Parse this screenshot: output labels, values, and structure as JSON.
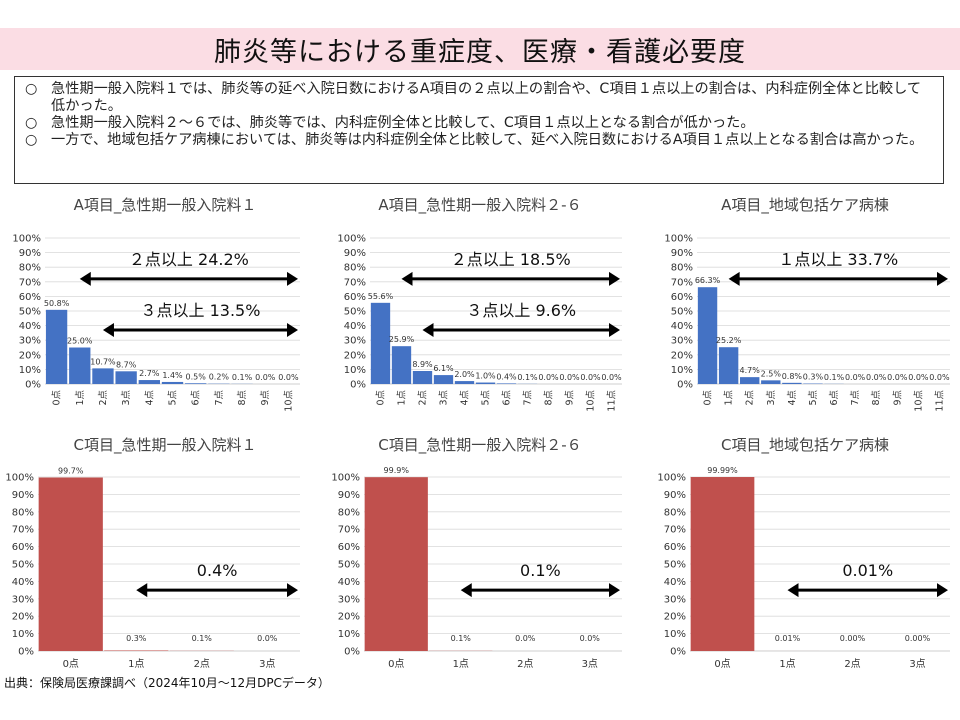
{
  "page": {
    "title": "肺炎等における重症度、医療・看護必要度",
    "summary": [
      {
        "mark": "○",
        "text": "急性期一般入院料１では、肺炎等の延べ入院日数におけるA項目の２点以上の割合や、C項目１点以上の割合は、内科症例全体と比較して低かった。"
      },
      {
        "mark": "○",
        "text": "急性期一般入院料２～６では、肺炎等では、内科症例全体と比較して、C項目１点以上となる割合が低かった。"
      },
      {
        "mark": "○",
        "text": "一方で、地域包括ケア病棟においては、肺炎等は内科症例全体と比較して、延べ入院日数におけるA項目１点以上となる割合は高かった。"
      }
    ],
    "source": "出典：保険局医療課調べ（2024年10月～12月DPCデータ）"
  },
  "colors": {
    "a_bar": "#4472c4",
    "c_bar": "#c0504d",
    "grid": "#d9d9d9",
    "arrow": "#000000"
  },
  "chart_data": [
    {
      "type": "bar",
      "title": "A項目_急性期一般入院料１",
      "categories": [
        "0点",
        "1点",
        "2点",
        "3点",
        "4点",
        "5点",
        "6点",
        "7点",
        "8点",
        "9点",
        "10点"
      ],
      "values": [
        50.8,
        25.0,
        10.7,
        8.7,
        2.7,
        1.4,
        0.5,
        0.2,
        0.1,
        0.0,
        0.0
      ],
      "labels": [
        "50.8%",
        "25.0%",
        "10.7%",
        "8.7%",
        "2.7%",
        "1.4%",
        "0.5%",
        "0.2%",
        "0.1%",
        "0.0%",
        "0.0%"
      ],
      "ylim": [
        0,
        100
      ],
      "yticks": [
        "0%",
        "10%",
        "20%",
        "30%",
        "40%",
        "50%",
        "60%",
        "70%",
        "80%",
        "90%",
        "100%"
      ],
      "grid": true,
      "annotations": [
        {
          "text": "２点以上 24.2%",
          "from_category": 1,
          "to_category": 10,
          "level": 72
        },
        {
          "text": "３点以上 13.5%",
          "from_category": 2,
          "to_category": 10,
          "level": 37
        }
      ]
    },
    {
      "type": "bar",
      "title": "A項目_急性期一般入院料２-６",
      "categories": [
        "0点",
        "1点",
        "2点",
        "3点",
        "4点",
        "5点",
        "6点",
        "7点",
        "8点",
        "9点",
        "10点",
        "11点"
      ],
      "values": [
        55.6,
        25.9,
        8.9,
        6.1,
        2.0,
        1.0,
        0.4,
        0.1,
        0.0,
        0.0,
        0.0,
        0.0
      ],
      "labels": [
        "55.6%",
        "25.9%",
        "8.9%",
        "6.1%",
        "2.0%",
        "1.0%",
        "0.4%",
        "0.1%",
        "0.0%",
        "0.0%",
        "0.0%",
        "0.0%"
      ],
      "ylim": [
        0,
        100
      ],
      "yticks": [
        "0%",
        "10%",
        "20%",
        "30%",
        "40%",
        "50%",
        "60%",
        "70%",
        "80%",
        "90%",
        "100%"
      ],
      "grid": true,
      "annotations": [
        {
          "text": "２点以上 18.5%",
          "from_category": 1,
          "to_category": 11,
          "level": 72
        },
        {
          "text": "３点以上 9.6%",
          "from_category": 2,
          "to_category": 11,
          "level": 37
        }
      ]
    },
    {
      "type": "bar",
      "title": "A項目_地域包括ケア病棟",
      "categories": [
        "0点",
        "1点",
        "2点",
        "3点",
        "4点",
        "5点",
        "6点",
        "7点",
        "8点",
        "9点",
        "10点",
        "11点"
      ],
      "values": [
        66.3,
        25.2,
        4.7,
        2.5,
        0.8,
        0.3,
        0.1,
        0.0,
        0.0,
        0.0,
        0.0,
        0.0
      ],
      "labels": [
        "66.3%",
        "25.2%",
        "4.7%",
        "2.5%",
        "0.8%",
        "0.3%",
        "0.1%",
        "0.0%",
        "0.0%",
        "0.0%",
        "0.0%",
        "0.0%"
      ],
      "ylim": [
        0,
        100
      ],
      "yticks": [
        "0%",
        "10%",
        "20%",
        "30%",
        "40%",
        "50%",
        "60%",
        "70%",
        "80%",
        "90%",
        "100%"
      ],
      "grid": true,
      "annotations": [
        {
          "text": "１点以上 33.7%",
          "from_category": 1,
          "to_category": 11,
          "level": 72
        }
      ]
    },
    {
      "type": "bar",
      "title": "C項目_急性期一般入院料１",
      "categories": [
        "0点",
        "1点",
        "2点",
        "3点"
      ],
      "values": [
        99.7,
        0.3,
        0.1,
        0.0
      ],
      "labels": [
        "99.7%",
        "0.3%",
        "0.1%",
        "0.0%"
      ],
      "ylim": [
        0,
        100
      ],
      "yticks": [
        "0%",
        "10%",
        "20%",
        "30%",
        "40%",
        "50%",
        "60%",
        "70%",
        "80%",
        "90%",
        "100%"
      ],
      "grid": true,
      "annotations": [
        {
          "text": "0.4%",
          "from_category": 1,
          "to_category": 3,
          "level": 35
        }
      ]
    },
    {
      "type": "bar",
      "title": "C項目_急性期一般入院料２-６",
      "categories": [
        "0点",
        "1点",
        "2点",
        "3点"
      ],
      "values": [
        99.9,
        0.1,
        0.0,
        0.0
      ],
      "labels": [
        "99.9%",
        "0.1%",
        "0.0%",
        "0.0%"
      ],
      "ylim": [
        0,
        100
      ],
      "yticks": [
        "0%",
        "10%",
        "20%",
        "30%",
        "40%",
        "50%",
        "60%",
        "70%",
        "80%",
        "90%",
        "100%"
      ],
      "grid": true,
      "annotations": [
        {
          "text": "0.1%",
          "from_category": 1,
          "to_category": 3,
          "level": 35
        }
      ]
    },
    {
      "type": "bar",
      "title": "C項目_地域包括ケア病棟",
      "categories": [
        "0点",
        "1点",
        "2点",
        "3点"
      ],
      "values": [
        99.99,
        0.01,
        0.0,
        0.0
      ],
      "labels": [
        "99.99%",
        "0.01%",
        "0.00%",
        "0.00%"
      ],
      "ylim": [
        0,
        100
      ],
      "yticks": [
        "0%",
        "10%",
        "20%",
        "30%",
        "40%",
        "50%",
        "60%",
        "70%",
        "80%",
        "90%",
        "100%"
      ],
      "grid": true,
      "annotations": [
        {
          "text": "0.01%",
          "from_category": 1,
          "to_category": 3,
          "level": 35
        }
      ]
    }
  ]
}
